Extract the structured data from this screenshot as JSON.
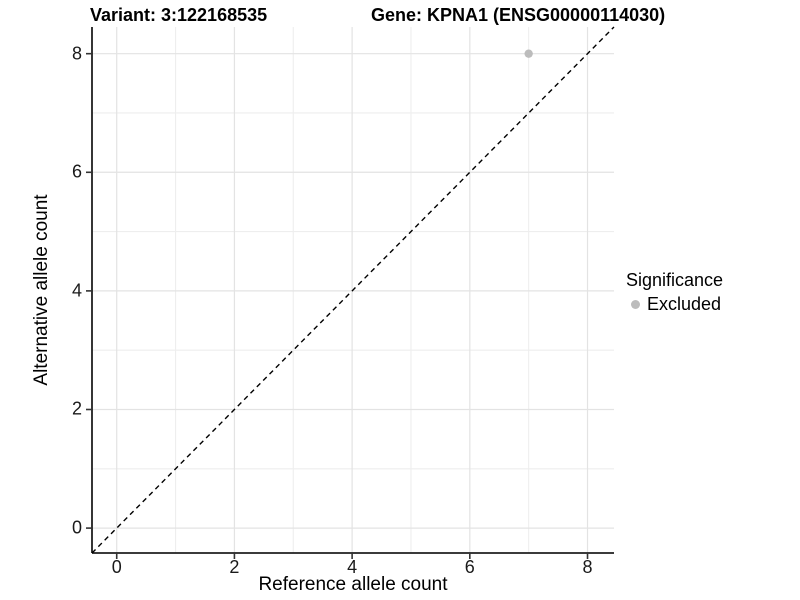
{
  "chart_data": {
    "type": "scatter",
    "subplot_titles": [
      "Variant: 3:122168535",
      "Gene: KPNA1 (ENSG00000114030)"
    ],
    "xlabel": "Reference allele count",
    "ylabel": "Alternative allele count",
    "xlim": [
      -0.42,
      8.45
    ],
    "ylim": [
      -0.42,
      8.45
    ],
    "x_ticks": [
      0,
      2,
      4,
      6,
      8
    ],
    "y_ticks": [
      0,
      2,
      4,
      6,
      8
    ],
    "x_minor_ticks": [
      1,
      3,
      5,
      7
    ],
    "y_minor_ticks": [
      1,
      3,
      5,
      7
    ],
    "grid": true,
    "points": [
      {
        "x": 7,
        "y": 8,
        "series": "Excluded"
      }
    ],
    "reference_line": {
      "slope": 1,
      "intercept": 0,
      "style": "dashed"
    },
    "legend": {
      "title": "Significance",
      "position": "right",
      "items": [
        {
          "label": "Excluded",
          "marker": "circle",
          "color": "#bcbcbc"
        }
      ]
    }
  },
  "colors": {
    "point": "#bcbcbc",
    "grid_major": "#e3e3e3",
    "grid_minor": "#eeeeee",
    "axis_line": "#1f1f1f",
    "tick_mark": "#333333",
    "dashed_line": "#000000",
    "background": "#ffffff"
  }
}
